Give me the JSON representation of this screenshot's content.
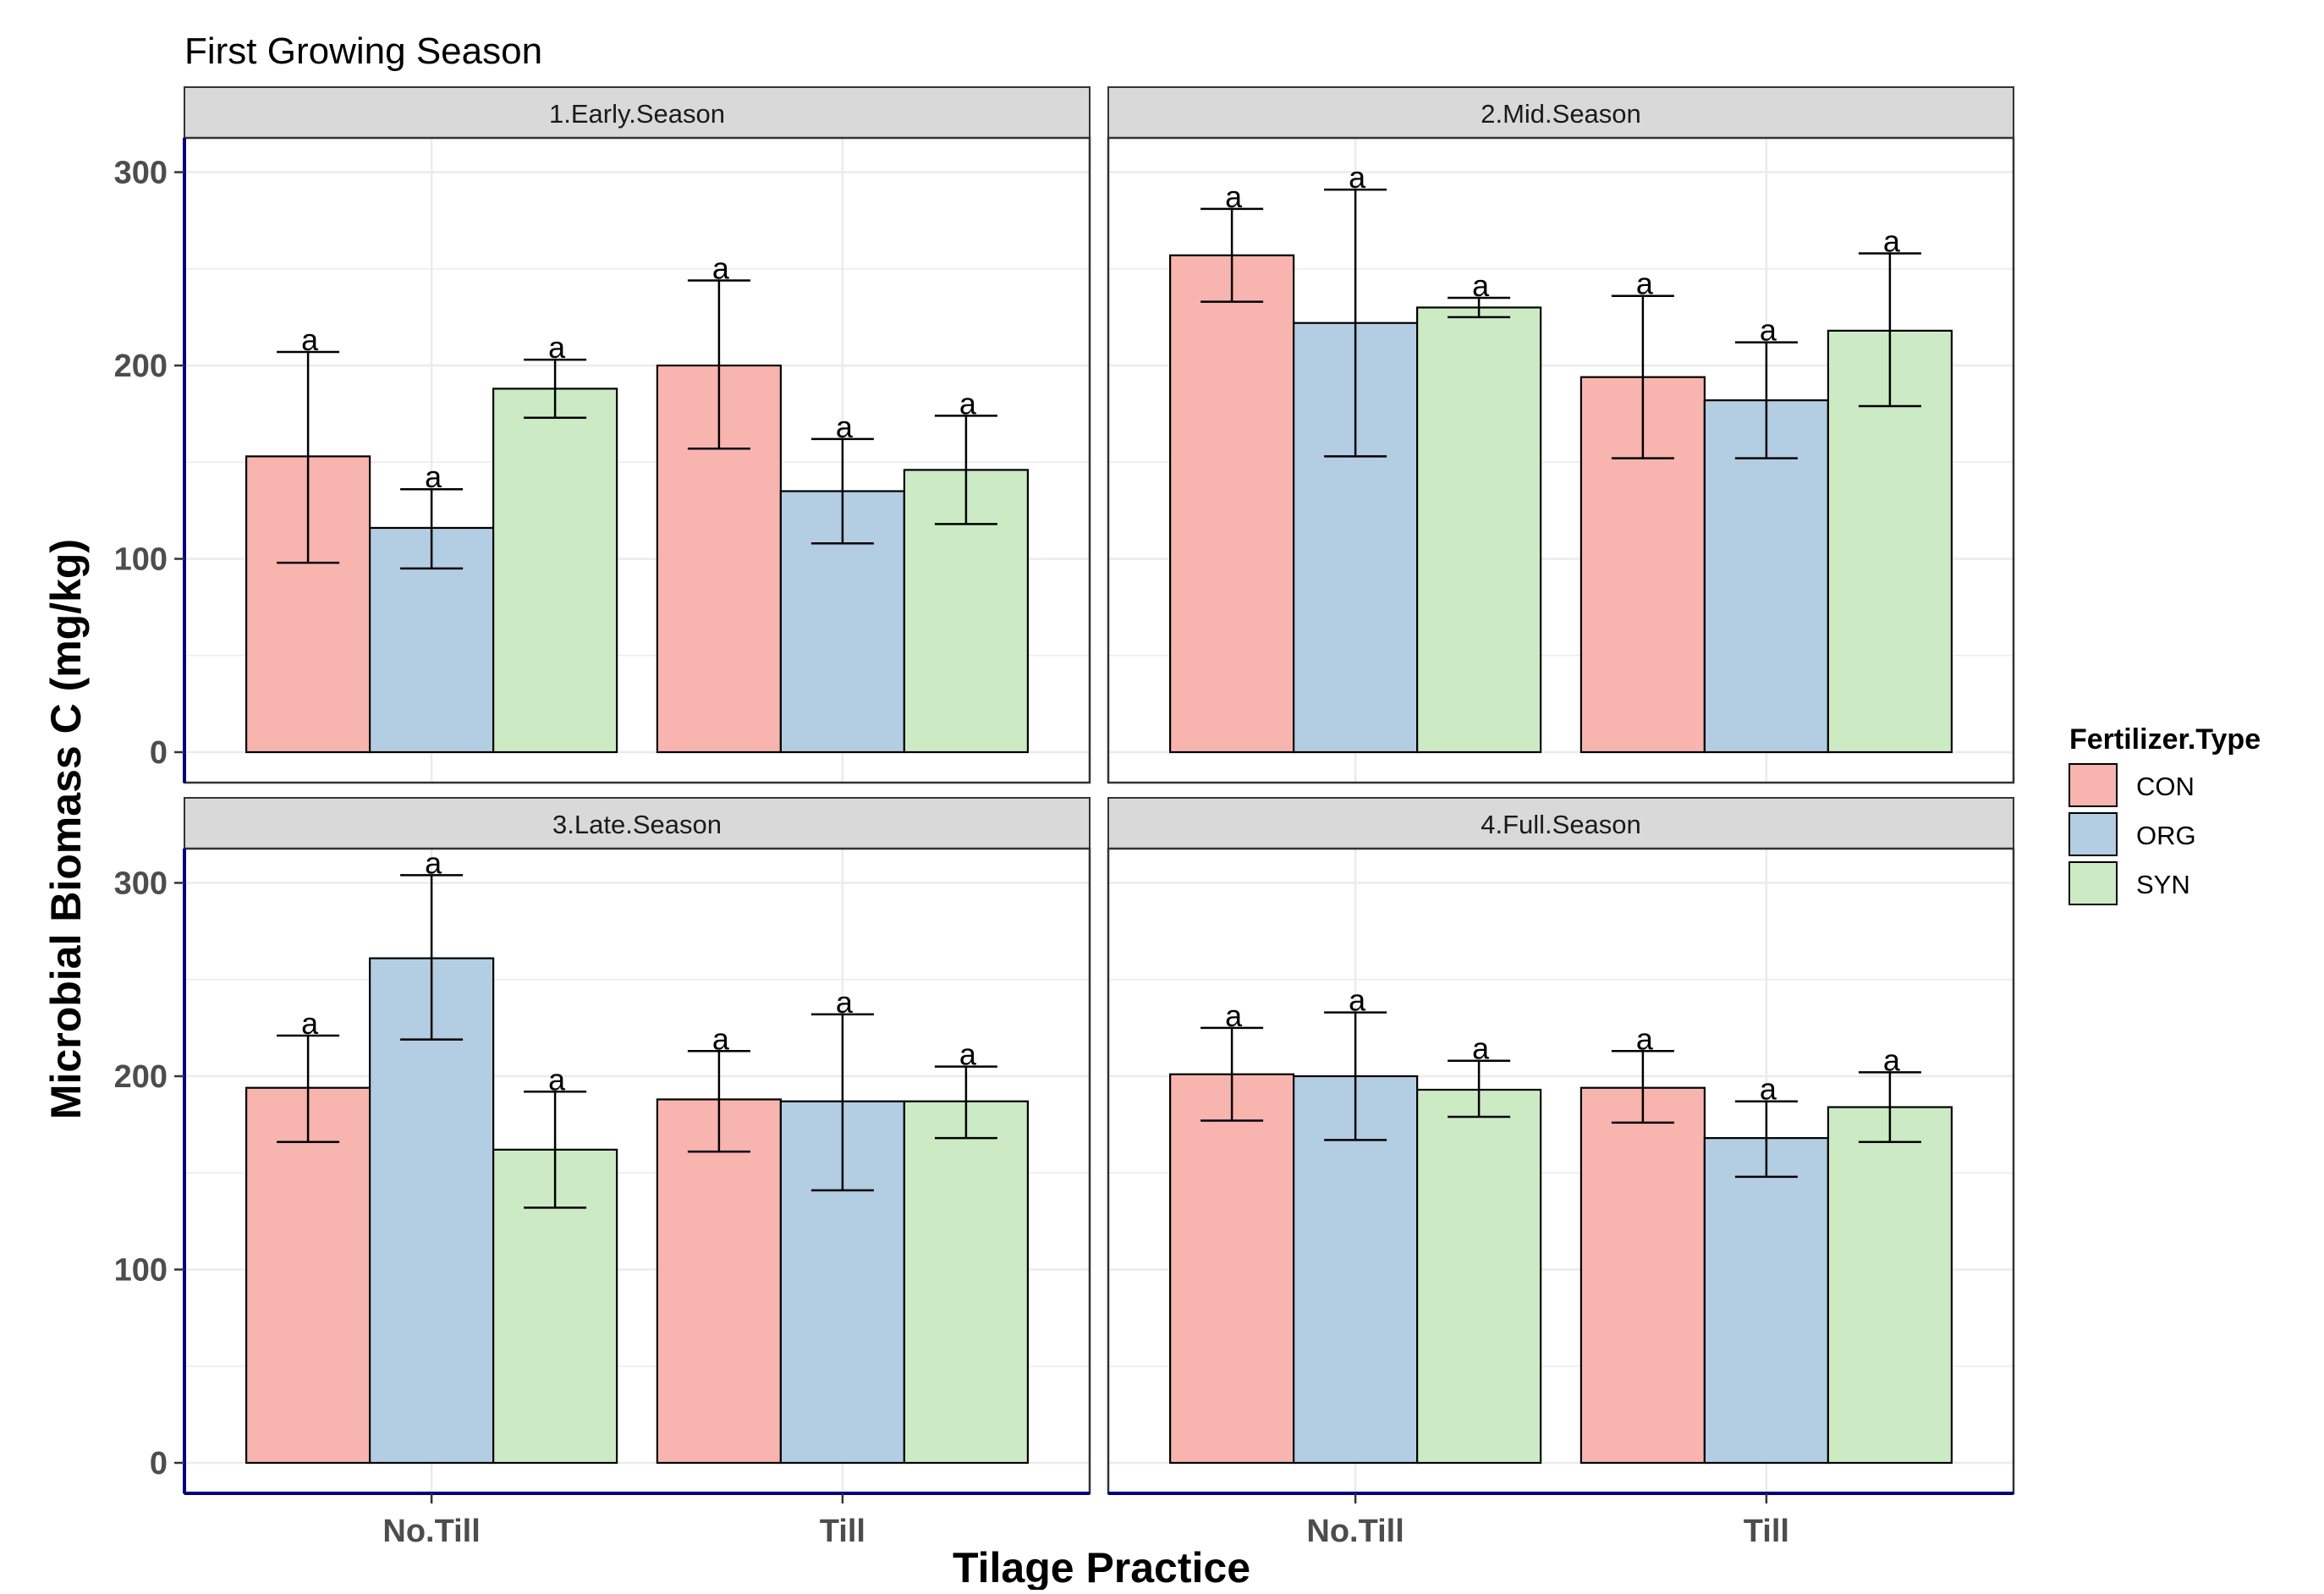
{
  "chart_data": {
    "type": "bar",
    "title": "First Growing Season",
    "xlabel": "Tilage Practice",
    "ylabel": "Microbial Biomass C (mg/kg)",
    "ylim": [
      0,
      300
    ],
    "yticks": [
      0,
      100,
      200,
      300
    ],
    "categories": [
      "No.Till",
      "Till"
    ],
    "grid": true,
    "legend": {
      "title": "Fertilizer.Type",
      "position": "right",
      "entries": [
        {
          "name": "CON",
          "color": "#f8b4ae"
        },
        {
          "name": "ORG",
          "color": "#b3cde3"
        },
        {
          "name": "SYN",
          "color": "#ccebc5"
        }
      ]
    },
    "colors": {
      "CON": "#f8b4ae",
      "ORG": "#b3cde3",
      "SYN": "#ccebc5",
      "axis_line": "#000080",
      "strip": "#d9d9d9",
      "grid": "#ebebeb"
    },
    "significance_letter": "a",
    "panels": [
      {
        "label": "1.Early.Season",
        "series": [
          {
            "name": "CON",
            "values": [
              153,
              200
            ],
            "err_low": [
              98,
              157
            ],
            "err_high": [
              207,
              244
            ]
          },
          {
            "name": "ORG",
            "values": [
              116,
              135
            ],
            "err_low": [
              95,
              108
            ],
            "err_high": [
              136,
              162
            ]
          },
          {
            "name": "SYN",
            "values": [
              188,
              146
            ],
            "err_low": [
              173,
              118
            ],
            "err_high": [
              203,
              174
            ]
          }
        ]
      },
      {
        "label": "2.Mid.Season",
        "series": [
          {
            "name": "CON",
            "values": [
              257,
              194
            ],
            "err_low": [
              233,
              152
            ],
            "err_high": [
              281,
              236
            ]
          },
          {
            "name": "ORG",
            "values": [
              222,
              182
            ],
            "err_low": [
              153,
              152
            ],
            "err_high": [
              291,
              212
            ]
          },
          {
            "name": "SYN",
            "values": [
              230,
              218
            ],
            "err_low": [
              225,
              179
            ],
            "err_high": [
              235,
              258
            ]
          }
        ]
      },
      {
        "label": "3.Late.Season",
        "series": [
          {
            "name": "CON",
            "values": [
              194,
              188
            ],
            "err_low": [
              166,
              161
            ],
            "err_high": [
              221,
              213
            ]
          },
          {
            "name": "ORG",
            "values": [
              261,
              187
            ],
            "err_low": [
              219,
              141
            ],
            "err_high": [
              304,
              232
            ]
          },
          {
            "name": "SYN",
            "values": [
              162,
              187
            ],
            "err_low": [
              132,
              168
            ],
            "err_high": [
              192,
              205
            ]
          }
        ]
      },
      {
        "label": "4.Full.Season",
        "series": [
          {
            "name": "CON",
            "values": [
              201,
              194
            ],
            "err_low": [
              177,
              176
            ],
            "err_high": [
              225,
              213
            ]
          },
          {
            "name": "ORG",
            "values": [
              200,
              168
            ],
            "err_low": [
              167,
              148
            ],
            "err_high": [
              233,
              187
            ]
          },
          {
            "name": "SYN",
            "values": [
              193,
              184
            ],
            "err_low": [
              179,
              166
            ],
            "err_high": [
              208,
              202
            ]
          }
        ]
      }
    ]
  }
}
